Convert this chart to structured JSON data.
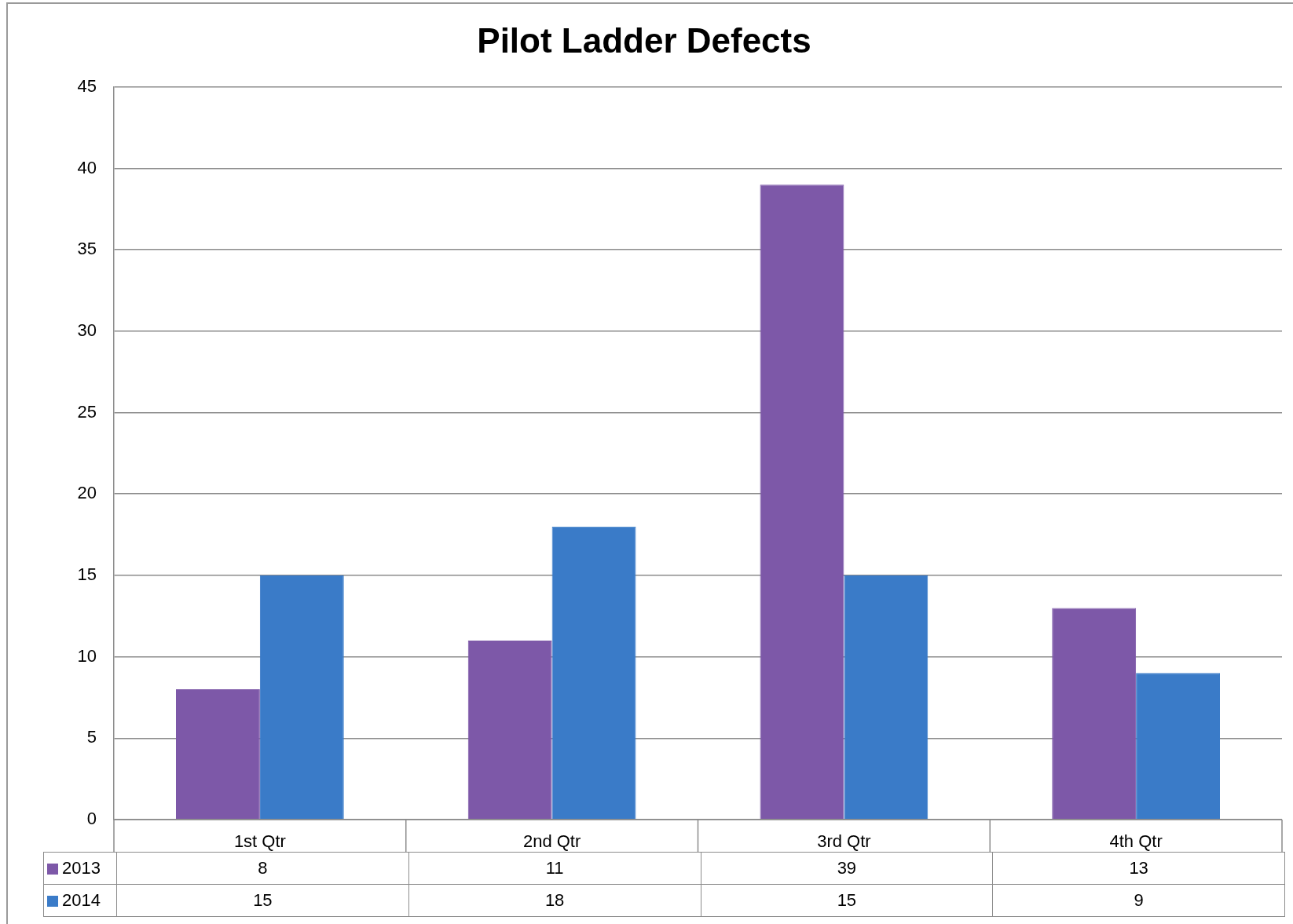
{
  "chart_data": {
    "type": "bar",
    "title": "Pilot Ladder Defects",
    "categories": [
      "1st Qtr",
      "2nd Qtr",
      "3rd Qtr",
      "4th Qtr"
    ],
    "series": [
      {
        "name": "2013",
        "color": "#7d58a8",
        "values": [
          8,
          11,
          39,
          13
        ]
      },
      {
        "name": "2014",
        "color": "#3a7bc8",
        "values": [
          15,
          18,
          15,
          9
        ]
      }
    ],
    "ylim": [
      0,
      45
    ],
    "yticks": [
      0,
      5,
      10,
      15,
      20,
      25,
      30,
      35,
      40,
      45
    ],
    "grid": "y",
    "legend": "bottom left",
    "data_labels": true
  }
}
